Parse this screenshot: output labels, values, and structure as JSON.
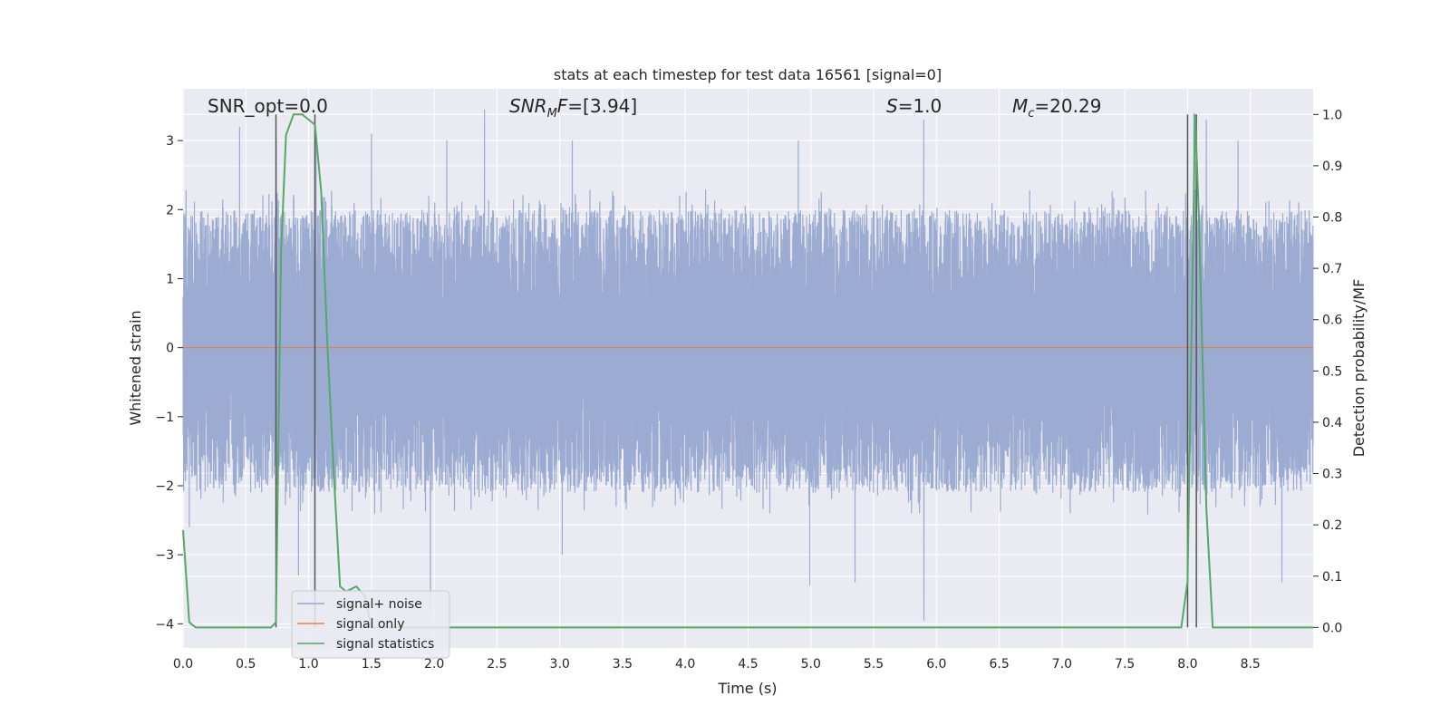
{
  "chart_data": {
    "type": "line",
    "title": "stats at each timestep for test data 16561 [signal=0]",
    "xlabel": "Time (s)",
    "ylabel": "Whitened strain",
    "y2label": "Detection probability/MF",
    "xlim": [
      0.0,
      9.0
    ],
    "ylim": [
      -4.35,
      3.75
    ],
    "y2lim": [
      -0.04,
      1.05
    ],
    "xticks": [
      "0.0",
      "0.5",
      "1.0",
      "1.5",
      "2.0",
      "2.5",
      "3.0",
      "3.5",
      "4.0",
      "4.5",
      "5.0",
      "5.5",
      "6.0",
      "6.5",
      "7.0",
      "7.5",
      "8.0",
      "8.5"
    ],
    "yticks": [
      "-4",
      "-3",
      "-2",
      "-1",
      "0",
      "1",
      "2",
      "3"
    ],
    "y2ticks": [
      "0.0",
      "0.1",
      "0.2",
      "0.3",
      "0.4",
      "0.5",
      "0.6",
      "0.7",
      "0.8",
      "0.9",
      "1.0"
    ],
    "grid": true,
    "legend_position": "lower-left",
    "annotations": {
      "snr_opt": "SNR_opt=0.0",
      "snr_mf": "=[3.94]",
      "s": "=1.0",
      "mc": "=20.29"
    },
    "vertical_lines_x": [
      0.74,
      1.05,
      8.0,
      8.07
    ],
    "series": [
      {
        "name": "signal+ noise",
        "color": "#97a8cf",
        "envelope": {
          "typical_max": 2.0,
          "typical_min": -2.1,
          "peaks": [
            {
              "x": 0.45,
              "y": 3.2
            },
            {
              "x": 0.74,
              "y": 3.0
            },
            {
              "x": 1.06,
              "y": 3.1
            },
            {
              "x": 1.5,
              "y": 3.1
            },
            {
              "x": 2.1,
              "y": 3.0
            },
            {
              "x": 2.4,
              "y": 3.45
            },
            {
              "x": 3.1,
              "y": 3.0
            },
            {
              "x": 4.9,
              "y": 3.0
            },
            {
              "x": 5.9,
              "y": 3.3
            },
            {
              "x": 8.05,
              "y": 3.4
            },
            {
              "x": 8.15,
              "y": 3.3
            },
            {
              "x": 8.4,
              "y": 3.0
            }
          ],
          "troughs": [
            {
              "x": 0.05,
              "y": -2.6
            },
            {
              "x": 0.92,
              "y": -3.3
            },
            {
              "x": 1.97,
              "y": -3.8
            },
            {
              "x": 3.02,
              "y": -3.0
            },
            {
              "x": 4.99,
              "y": -3.45
            },
            {
              "x": 5.35,
              "y": -3.4
            },
            {
              "x": 5.9,
              "y": -3.95
            },
            {
              "x": 8.75,
              "y": -3.4
            }
          ]
        }
      },
      {
        "name": "signal only",
        "color": "#dd8452",
        "x": [
          0.0,
          9.0
        ],
        "y": [
          0.0,
          0.0
        ]
      },
      {
        "name": "signal statistics",
        "color": "#55a868",
        "axis": "right",
        "x": [
          0.0,
          0.05,
          0.1,
          0.15,
          0.3,
          0.5,
          0.7,
          0.74,
          0.78,
          0.82,
          0.88,
          0.95,
          1.0,
          1.05,
          1.1,
          1.15,
          1.2,
          1.25,
          1.3,
          1.38,
          1.45,
          1.5,
          2.0,
          3.0,
          4.0,
          5.0,
          6.0,
          7.0,
          7.6,
          7.7,
          7.8,
          7.95,
          8.0,
          8.03,
          8.06,
          8.09,
          8.15,
          8.2,
          8.3,
          8.5,
          9.0
        ],
        "y": [
          0.19,
          0.01,
          0.0,
          0.0,
          0.0,
          0.0,
          0.0,
          0.01,
          0.73,
          0.96,
          1.0,
          1.0,
          0.99,
          0.98,
          0.85,
          0.55,
          0.3,
          0.08,
          0.07,
          0.08,
          0.06,
          0.0,
          0.0,
          0.0,
          0.0,
          0.0,
          0.0,
          0.0,
          0.0,
          0.0,
          0.0,
          0.0,
          0.09,
          0.55,
          1.0,
          0.8,
          0.23,
          0.0,
          0.0,
          0.0,
          0.0
        ]
      }
    ]
  }
}
